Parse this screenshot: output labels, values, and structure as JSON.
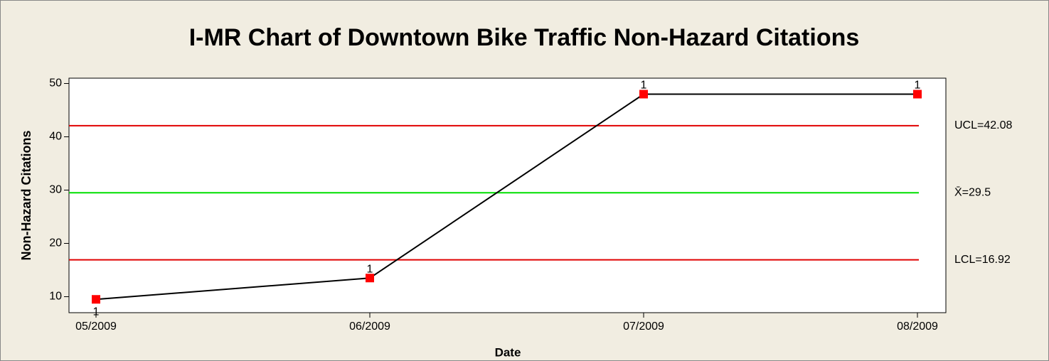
{
  "chart_data": {
    "type": "line",
    "title": "I-MR Chart of Downtown Bike Traffic Non-Hazard Citations",
    "x_label": "Date",
    "y_label": "Non-Hazard Citations",
    "categories": [
      "05/2009",
      "06/2009",
      "07/2009",
      "08/2009"
    ],
    "series": [
      {
        "name": "Non-Hazard Citations",
        "color": "#000000",
        "marker_color": "#ff0000",
        "values": [
          9.5,
          13.5,
          48,
          48
        ]
      }
    ],
    "point_labels": [
      "1",
      "1",
      "1",
      "1"
    ],
    "control_lines": [
      {
        "label": "UCL=42.08",
        "value": 42.08,
        "color": "#e00000"
      },
      {
        "label": "X̄=29.5",
        "value": 29.5,
        "color": "#00e000"
      },
      {
        "label": "LCL=16.92",
        "value": 16.92,
        "color": "#e00000"
      }
    ],
    "ylim": [
      7,
      51
    ],
    "yticks": [
      10,
      20,
      30,
      40,
      50
    ]
  }
}
